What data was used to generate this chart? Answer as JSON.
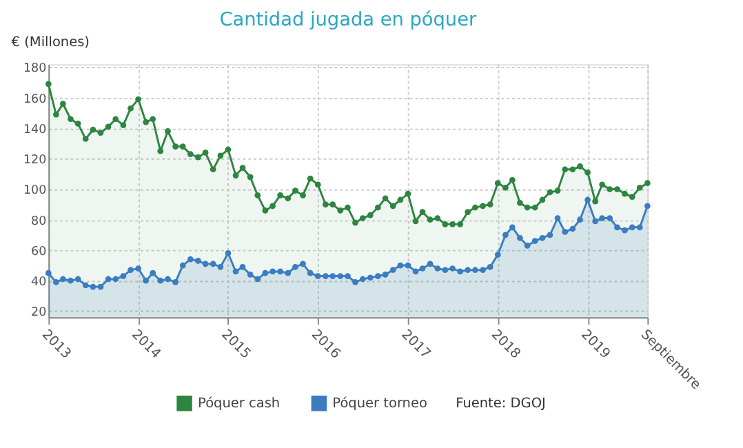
{
  "chart_data": {
    "type": "area",
    "title": "Cantidad jugada en póquer",
    "ylabel": "€ (Millones)",
    "x": [
      "2013-01",
      "2013-02",
      "2013-03",
      "2013-04",
      "2013-05",
      "2013-06",
      "2013-07",
      "2013-08",
      "2013-09",
      "2013-10",
      "2013-11",
      "2013-12",
      "2014-01",
      "2014-02",
      "2014-03",
      "2014-04",
      "2014-05",
      "2014-06",
      "2014-07",
      "2014-08",
      "2014-09",
      "2014-10",
      "2014-11",
      "2014-12",
      "2015-01",
      "2015-02",
      "2015-03",
      "2015-04",
      "2015-05",
      "2015-06",
      "2015-07",
      "2015-08",
      "2015-09",
      "2015-10",
      "2015-11",
      "2015-12",
      "2016-01",
      "2016-02",
      "2016-03",
      "2016-04",
      "2016-05",
      "2016-06",
      "2016-07",
      "2016-08",
      "2016-09",
      "2016-10",
      "2016-11",
      "2016-12",
      "2017-01",
      "2017-02",
      "2017-03",
      "2017-04",
      "2017-05",
      "2017-06",
      "2017-07",
      "2017-08",
      "2017-09",
      "2017-10",
      "2017-11",
      "2017-12",
      "2018-01",
      "2018-02",
      "2018-03",
      "2018-04",
      "2018-05",
      "2018-06",
      "2018-07",
      "2018-08",
      "2018-09",
      "2018-10",
      "2018-11",
      "2018-12",
      "2019-01",
      "2019-02",
      "2019-03",
      "2019-04",
      "2019-05",
      "2019-06",
      "2019-07",
      "2019-08",
      "2019-09"
    ],
    "series": [
      {
        "name": "Póquer cash",
        "color": "#2e8540",
        "values": [
          169,
          149,
          156,
          146,
          143,
          133,
          139,
          137,
          141,
          146,
          142,
          153,
          159,
          144,
          146,
          125,
          138,
          128,
          128,
          123,
          121,
          124,
          113,
          122,
          126,
          109,
          114,
          108,
          96,
          86,
          89,
          96,
          94,
          99,
          96,
          107,
          103,
          90,
          90,
          86,
          88,
          78,
          81,
          83,
          88,
          94,
          89,
          93,
          97,
          79,
          85,
          80,
          81,
          77,
          77,
          77,
          85,
          88,
          89,
          90,
          104,
          101,
          106,
          91,
          88,
          88,
          93,
          98,
          99,
          113,
          113,
          115,
          111,
          92,
          103,
          100,
          100,
          97,
          95,
          101,
          104
        ]
      },
      {
        "name": "Póquer torneo",
        "color": "#3b7dc0",
        "values": [
          45,
          39,
          41,
          40,
          41,
          37,
          36,
          36,
          41,
          41,
          43,
          47,
          48,
          40,
          45,
          40,
          41,
          39,
          50,
          54,
          53,
          51,
          51,
          49,
          58,
          46,
          49,
          44,
          41,
          45,
          46,
          46,
          45,
          49,
          51,
          45,
          43,
          43,
          43,
          43,
          43,
          39,
          41,
          42,
          43,
          44,
          47,
          50,
          50,
          46,
          48,
          51,
          48,
          47,
          48,
          46,
          47,
          47,
          47,
          49,
          57,
          70,
          75,
          68,
          63,
          66,
          68,
          70,
          81,
          72,
          74,
          80,
          93,
          79,
          81,
          81,
          75,
          73,
          75,
          75,
          89
        ]
      }
    ],
    "ylim": [
      16,
      182
    ],
    "yticks": [
      20,
      40,
      60,
      80,
      100,
      120,
      140,
      160,
      180
    ],
    "xlim": [
      "2013-01",
      "2019-09"
    ],
    "xticks": [
      {
        "value": "2013-01",
        "label": "2013"
      },
      {
        "value": "2014-01",
        "label": "2014"
      },
      {
        "value": "2015-01",
        "label": "2015"
      },
      {
        "value": "2016-01",
        "label": "2016"
      },
      {
        "value": "2017-01",
        "label": "2017"
      },
      {
        "value": "2018-01",
        "label": "2018"
      },
      {
        "value": "2019-01",
        "label": "2019"
      },
      {
        "value": "2019-09",
        "label": "Septiembre"
      }
    ],
    "grid": true,
    "marker": "circle",
    "legend": "bottom",
    "annotations": [
      "Fuente: DGOJ"
    ]
  }
}
